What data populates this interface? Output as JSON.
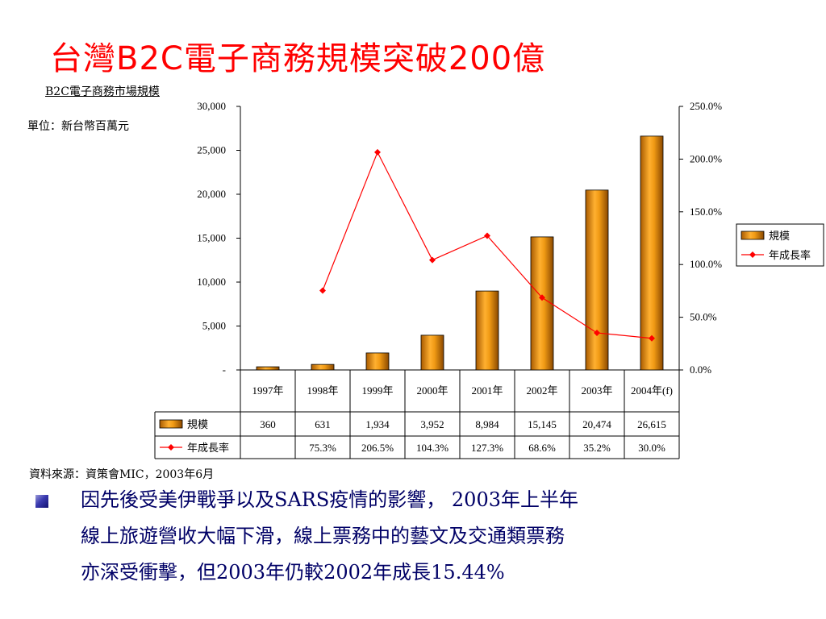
{
  "slide": {
    "title": "台灣B2C電子商務規模突破200億",
    "subtitle": "B2C電子商務市場規模",
    "unit": "單位：新台幣百萬元",
    "source": "資料來源：資策會MIC，2003年6月",
    "bullet_lines": [
      "因先後受美伊戰爭以及SARS疫情的影響， 2003年上半年",
      "線上旅遊營收大幅下滑，線上票務中的藝文及交通類票務",
      "亦深受衝擊，但2003年仍較2002年成長15.44%"
    ]
  },
  "chart_data": {
    "type": "bar",
    "title": "",
    "categories": [
      "1997年",
      "1998年",
      "1999年",
      "2000年",
      "2001年",
      "2002年",
      "2003年",
      "2004年(f)"
    ],
    "series": [
      {
        "name": "規模",
        "type": "bar",
        "axis": "left",
        "color": "#e8900a",
        "values": [
          360,
          631,
          1934,
          3952,
          8984,
          15145,
          20474,
          26615
        ],
        "labels": [
          "360",
          "631",
          "1,934",
          "3,952",
          "8,984",
          "15,145",
          "20,474",
          "26,615"
        ]
      },
      {
        "name": "年成長率",
        "type": "line",
        "axis": "right",
        "color": "#ff0000",
        "values": [
          null,
          75.3,
          206.5,
          104.3,
          127.3,
          68.6,
          35.2,
          30.0
        ],
        "labels": [
          "",
          "75.3%",
          "206.5%",
          "104.3%",
          "127.3%",
          "68.6%",
          "35.2%",
          "30.0%"
        ]
      }
    ],
    "y_left": {
      "range": [
        0,
        30000
      ],
      "ticks": [
        0,
        5000,
        10000,
        15000,
        20000,
        25000,
        30000
      ],
      "tick_labels": [
        "-",
        "5,000",
        "10,000",
        "15,000",
        "20,000",
        "25,000",
        "30,000"
      ]
    },
    "y_right": {
      "range": [
        0,
        250
      ],
      "ticks": [
        0,
        50,
        100,
        150,
        200,
        250
      ],
      "tick_labels": [
        "0.0%",
        "50.0%",
        "100.0%",
        "150.0%",
        "200.0%",
        "250.0%"
      ]
    },
    "legend": {
      "position": "right",
      "items": [
        "規模",
        "年成長率"
      ]
    },
    "data_table": true,
    "grid": false
  }
}
